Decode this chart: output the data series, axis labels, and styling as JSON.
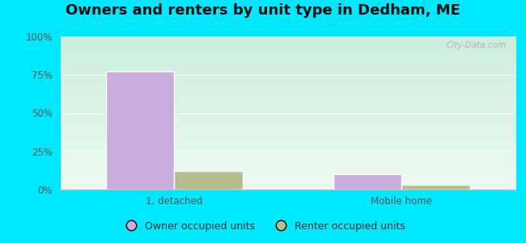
{
  "title": "Owners and renters by unit type in Dedham, ME",
  "categories": [
    "1, detached",
    "Mobile home"
  ],
  "owner_values": [
    77,
    10
  ],
  "renter_values": [
    12,
    3
  ],
  "owner_color": "#c9aedd",
  "renter_color": "#b5bf8e",
  "ylim": [
    0,
    100
  ],
  "yticks": [
    0,
    25,
    50,
    75,
    100
  ],
  "ytick_labels": [
    "0%",
    "25%",
    "50%",
    "75%",
    "100%"
  ],
  "outer_background": "#00e8ff",
  "bar_width": 0.3,
  "legend_labels": [
    "Owner occupied units",
    "Renter occupied units"
  ],
  "watermark": "City-Data.com",
  "title_fontsize": 13,
  "axis_label_fontsize": 8.5,
  "legend_fontsize": 9,
  "tick_color": "#555555"
}
